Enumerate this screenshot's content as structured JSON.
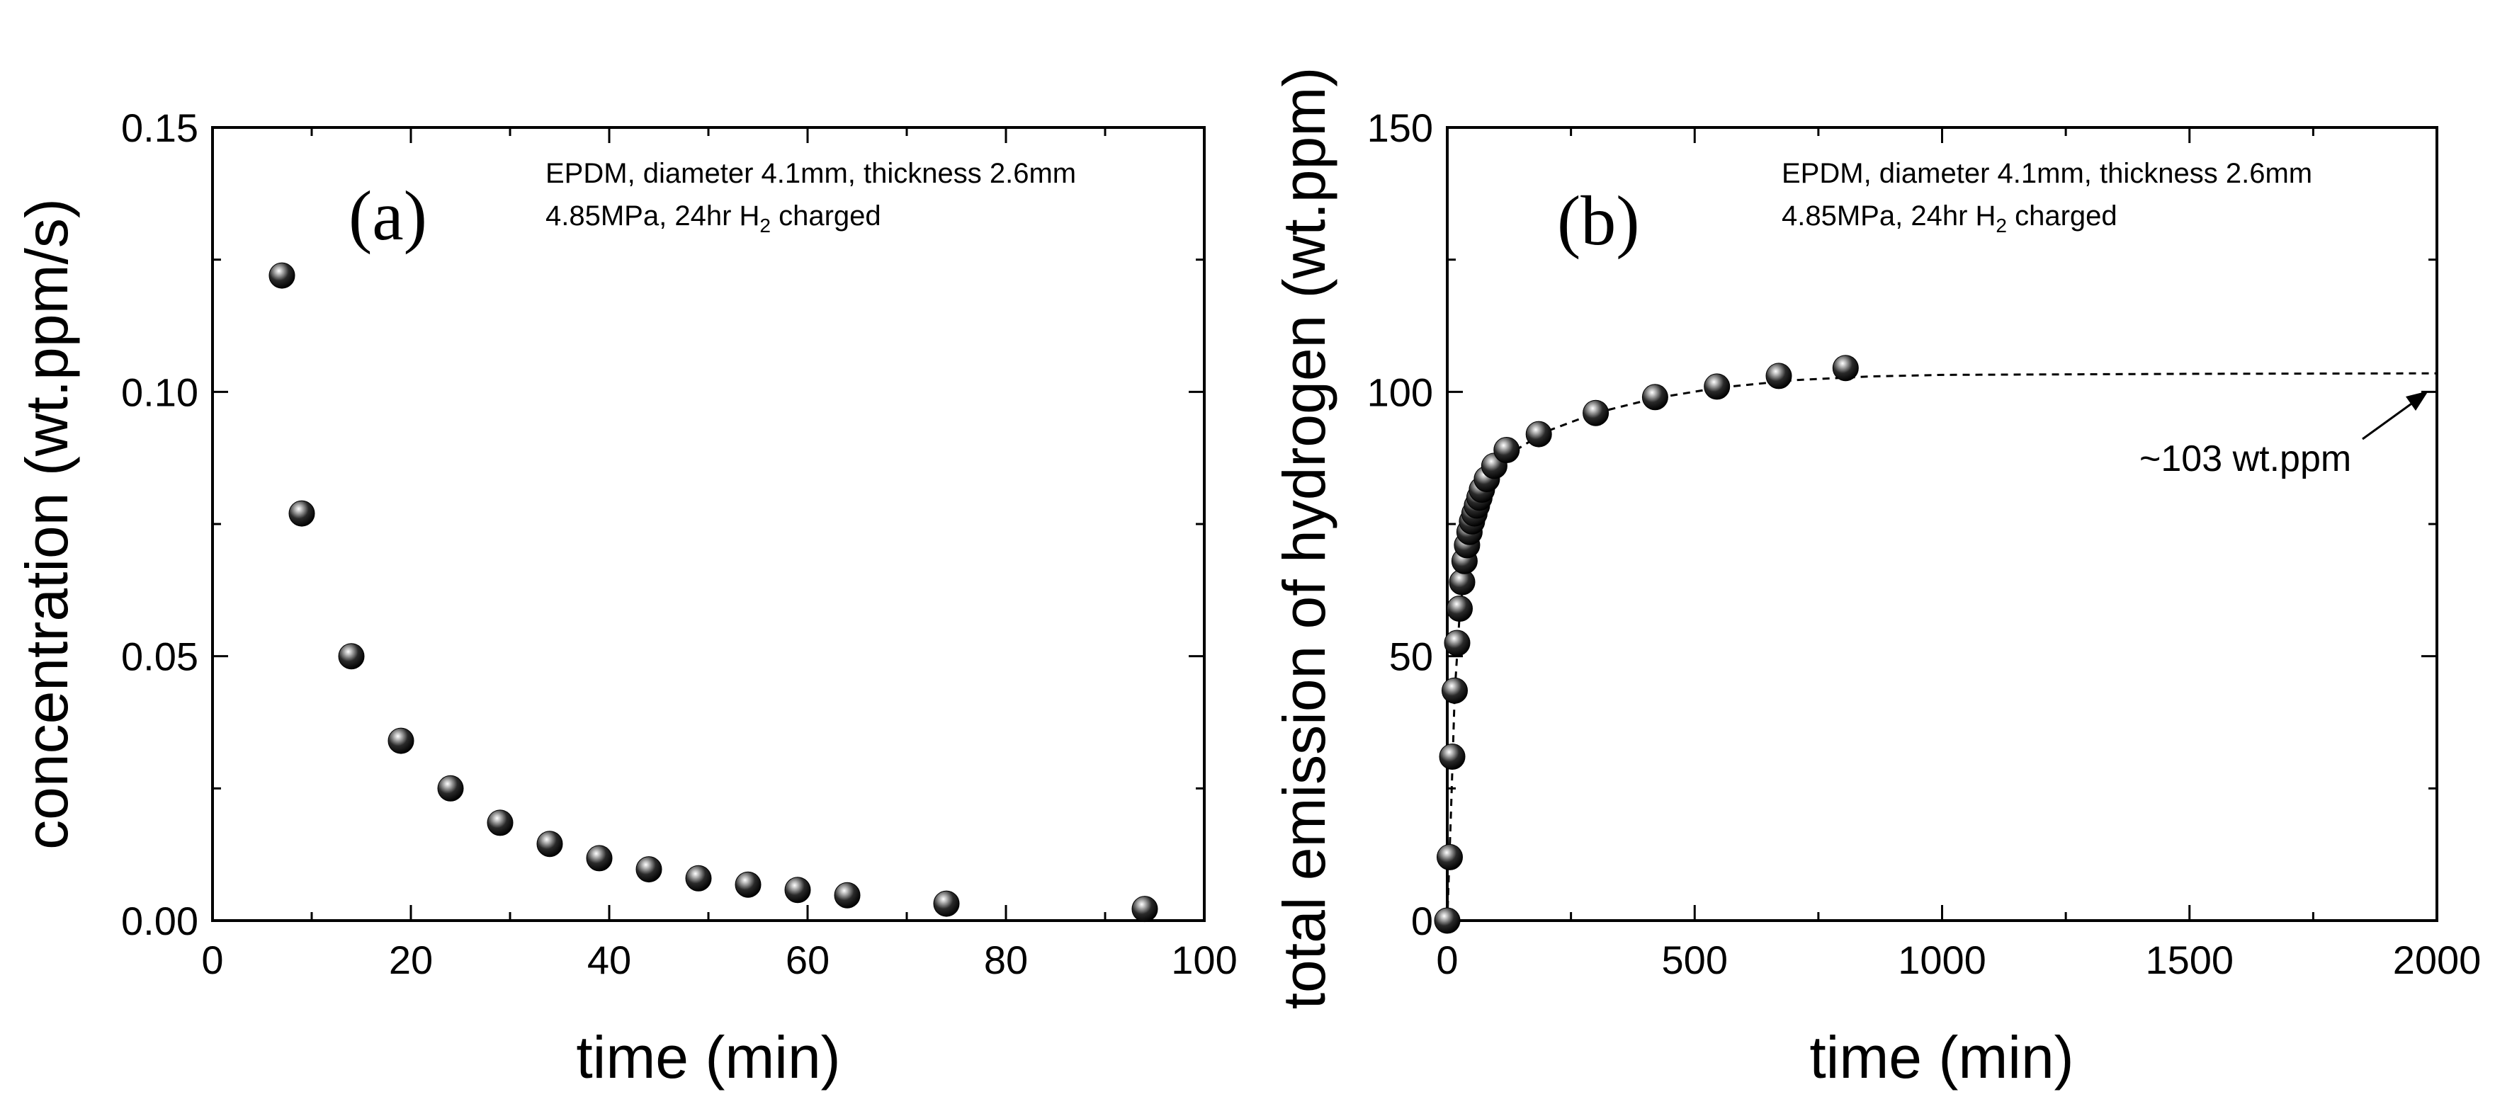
{
  "chart_data": [
    {
      "type": "scatter",
      "panel_label": "(a)",
      "annotation": {
        "line1": "EPDM, diameter 4.1mm, thickness 2.6mm",
        "line2_prefix": "4.85MPa, 24hr H",
        "line2_sub": "2",
        "line2_suffix": " charged"
      },
      "xlabel": "time (min)",
      "ylabel": "concentration (wt.ppm/s)",
      "xlim": [
        0,
        100
      ],
      "ylim": [
        0,
        0.15
      ],
      "xticks": [
        0,
        20,
        40,
        60,
        80,
        100
      ],
      "xtick_labels": [
        "0",
        "20",
        "40",
        "60",
        "80",
        "100"
      ],
      "yticks": [
        0,
        0.05,
        0.1,
        0.15
      ],
      "ytick_labels": [
        "0.00",
        "0.05",
        "0.10",
        "0.15"
      ],
      "series": [
        {
          "name": "EPDM",
          "x": [
            7,
            9,
            14,
            19,
            24,
            29,
            34,
            39,
            44,
            49,
            54,
            59,
            64,
            74,
            94
          ],
          "y": [
            0.122,
            0.077,
            0.05,
            0.034,
            0.025,
            0.0185,
            0.0145,
            0.0118,
            0.0097,
            0.008,
            0.0068,
            0.0058,
            0.0048,
            0.0032,
            0.0022
          ]
        }
      ]
    },
    {
      "type": "scatter",
      "panel_label": "(b)",
      "annotation": {
        "line1": "EPDM, diameter 4.1mm, thickness 2.6mm",
        "line2_prefix": "4.85MPa, 24hr H",
        "line2_sub": "2",
        "line2_suffix": " charged"
      },
      "callout": "~103 wt.ppm",
      "xlabel": "time (min)",
      "ylabel": "total emission of hydrogen (wt.ppm)",
      "xlim": [
        0,
        2000
      ],
      "ylim": [
        0,
        150
      ],
      "xticks": [
        0,
        500,
        1000,
        1500,
        2000
      ],
      "xtick_labels": [
        "0",
        "500",
        "1000",
        "1500",
        "2000"
      ],
      "yticks": [
        0,
        50,
        100,
        150
      ],
      "ytick_labels": [
        "0",
        "50",
        "100",
        "150"
      ],
      "series": [
        {
          "name": "EPDM",
          "x": [
            0,
            5,
            10,
            15,
            20,
            25,
            30,
            35,
            40,
            45,
            50,
            55,
            60,
            65,
            70,
            80,
            95,
            120,
            185,
            300,
            420,
            545,
            670,
            805
          ],
          "y": [
            0,
            12,
            31,
            43.5,
            52.5,
            59,
            64,
            68,
            71,
            73.5,
            75.5,
            77,
            78.5,
            80,
            81.5,
            83.5,
            86,
            89,
            92,
            96,
            99,
            101,
            103,
            104.5
          ]
        },
        {
          "name": "fit",
          "style": "dashed",
          "x": [
            0,
            8,
            15,
            25,
            40,
            60,
            90,
            130,
            200,
            300,
            420,
            550,
            700,
            850,
            1000,
            1500,
            2000
          ],
          "y": [
            0,
            22,
            43,
            58,
            69.5,
            77,
            84,
            88.5,
            92.5,
            96,
            98.8,
            100.8,
            102.2,
            102.9,
            103.2,
            103.4,
            103.5
          ]
        }
      ]
    }
  ]
}
